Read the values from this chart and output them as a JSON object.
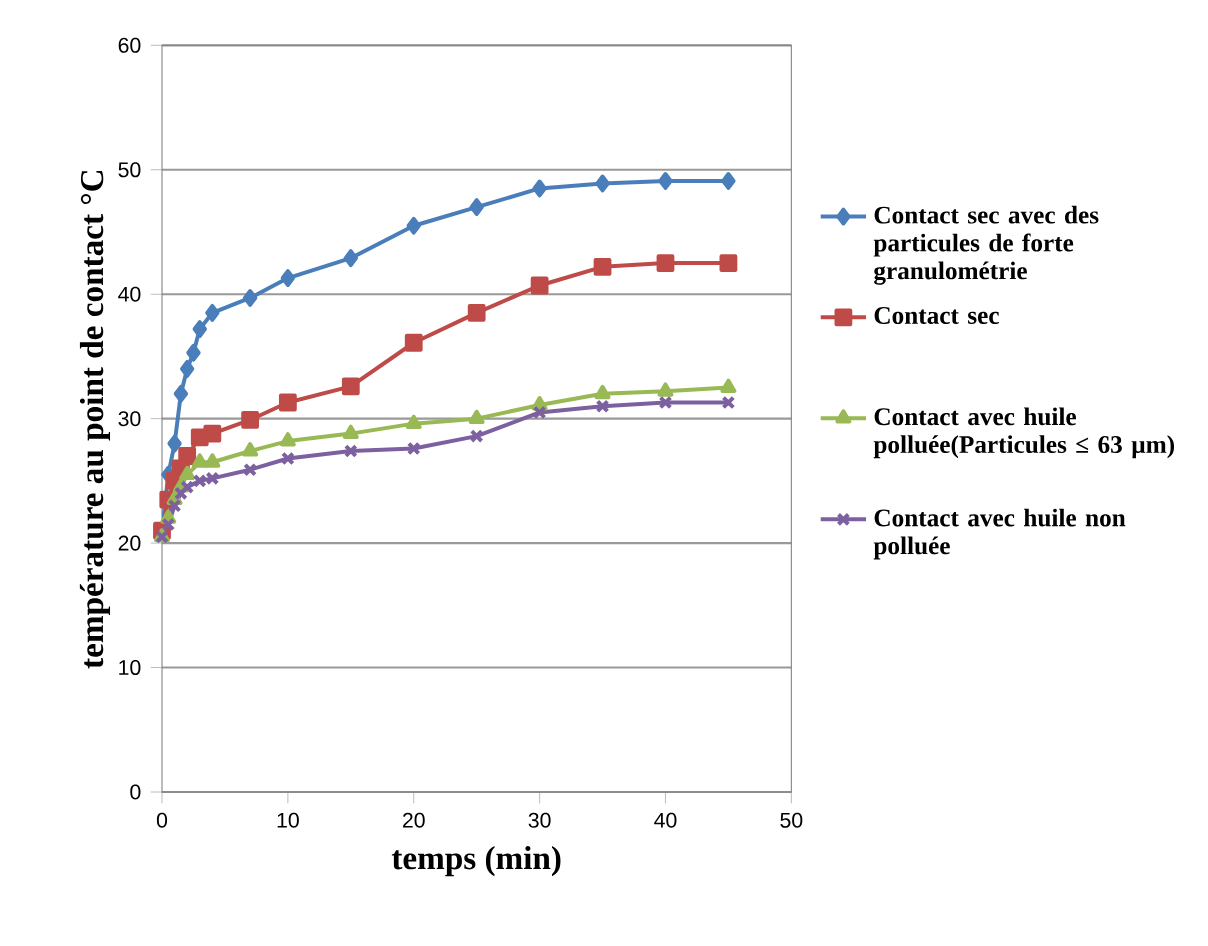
{
  "chart_data": {
    "type": "line",
    "xlabel": "temps (min)",
    "ylabel": "température au point de contact °C",
    "xlim": [
      0,
      50
    ],
    "ylim": [
      0,
      60
    ],
    "xticks": [
      0,
      10,
      20,
      30,
      40,
      50
    ],
    "yticks": [
      0,
      10,
      20,
      30,
      40,
      50,
      60
    ],
    "grid": "y",
    "legend": "right",
    "line_style": "solid",
    "series": [
      {
        "name": "Contact sec avec des particules de forte granulométrie",
        "color": "#4a7ebb",
        "marker": "diamond",
        "x": [
          0,
          0.5,
          1,
          1.5,
          2,
          2.5,
          3,
          4,
          7,
          10,
          15,
          20,
          25,
          30,
          35,
          40,
          45
        ],
        "values": [
          21,
          25.5,
          28,
          32,
          34,
          35.3,
          37.2,
          38.5,
          39.7,
          41.3,
          42.9,
          45.5,
          47,
          48.5,
          48.9,
          49.1,
          49.1
        ]
      },
      {
        "name": "Contact sec",
        "color": "#be4b48",
        "marker": "square",
        "x": [
          0,
          0.5,
          1,
          1.5,
          2,
          3,
          4,
          7,
          10,
          15,
          20,
          25,
          30,
          35,
          40,
          45
        ],
        "values": [
          21,
          23.5,
          25,
          26,
          27,
          28.5,
          28.8,
          29.9,
          31.3,
          32.6,
          36.1,
          38.5,
          40.7,
          42.2,
          42.5,
          42.5
        ]
      },
      {
        "name": "Contact avec huile polluée(Particules ≤ 63 µm)",
        "color": "#98b954",
        "marker": "triangle",
        "x": [
          0,
          0.5,
          1,
          1.5,
          2,
          3,
          4,
          7,
          10,
          15,
          20,
          25,
          30,
          35,
          40,
          45
        ],
        "values": [
          20.5,
          22,
          23.5,
          24.5,
          25.5,
          26.5,
          26.5,
          27.4,
          28.2,
          28.8,
          29.6,
          30,
          31.1,
          32,
          32.2,
          32.5
        ]
      },
      {
        "name": "Contact avec huile non polluée",
        "color": "#7d60a0",
        "marker": "cross",
        "x": [
          0,
          0.5,
          1,
          1.5,
          2,
          3,
          4,
          7,
          10,
          15,
          20,
          25,
          30,
          35,
          40,
          45
        ],
        "values": [
          20.5,
          21.5,
          23,
          24,
          24.5,
          25,
          25.2,
          25.9,
          26.8,
          27.4,
          27.6,
          28.6,
          30.5,
          31,
          31.3,
          31.3
        ]
      }
    ]
  }
}
